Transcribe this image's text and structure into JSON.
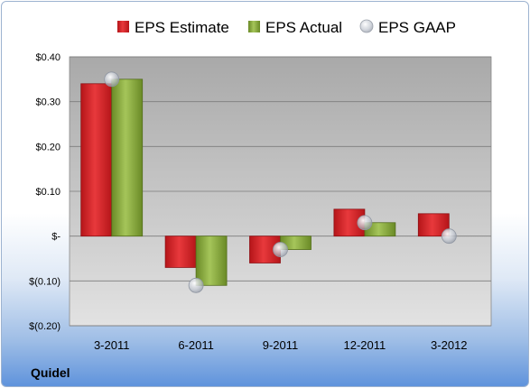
{
  "company_label": "Quidel",
  "legend": {
    "estimate": "EPS Estimate",
    "actual": "EPS Actual",
    "gaap": "EPS GAAP"
  },
  "colors": {
    "estimate": "#d9262b",
    "actual": "#8aaa3c",
    "gaap": "#c8ccd4",
    "plot_top": "#a9a9a9",
    "plot_bottom": "#e2e2e2"
  },
  "chart_data": {
    "type": "bar",
    "categories": [
      "3-2011",
      "6-2011",
      "9-2011",
      "12-2011",
      "3-2012"
    ],
    "series": [
      {
        "name": "EPS Estimate",
        "values": [
          0.34,
          -0.07,
          -0.06,
          0.06,
          0.05
        ]
      },
      {
        "name": "EPS Actual",
        "values": [
          0.35,
          -0.11,
          -0.03,
          0.03,
          null
        ]
      },
      {
        "name": "EPS GAAP",
        "values": [
          0.35,
          -0.11,
          -0.03,
          0.03,
          0.0
        ],
        "style": "marker"
      }
    ],
    "ylim": [
      -0.2,
      0.4
    ],
    "yticks": [
      0.4,
      0.3,
      0.2,
      0.1,
      0.0,
      -0.1,
      -0.2
    ],
    "ytick_labels": [
      "$0.40",
      "$0.30",
      "$0.20",
      "$0.10",
      "$-",
      "$(0.10)",
      "$(0.20)"
    ],
    "grid": true,
    "legend_position": "top"
  }
}
